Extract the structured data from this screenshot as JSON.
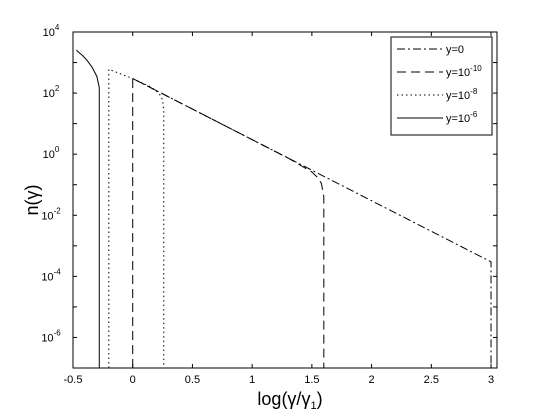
{
  "chart_data": {
    "type": "line",
    "xlabel": "log(γ/γ",
    "xlabel_sub": "1",
    "xlabel_tail": ")",
    "ylabel": "n(γ)",
    "xlim": [
      -0.5,
      3.05
    ],
    "ylim_exponent": [
      -7,
      4
    ],
    "y_scale": "log",
    "grid": false,
    "legend_position": "top-right",
    "x_ticks": [
      "-0.5",
      "0",
      "0.5",
      "1",
      "1.5",
      "2",
      "2.5",
      "3"
    ],
    "x_tick_values": [
      -0.5,
      0,
      0.5,
      1,
      1.5,
      2,
      2.5,
      3
    ],
    "y_ticks": [
      {
        "base": "10",
        "exp": "4",
        "value_exp": 4
      },
      {
        "base": "10",
        "exp": "2",
        "value_exp": 2
      },
      {
        "base": "10",
        "exp": "0",
        "value_exp": 0
      },
      {
        "base": "10",
        "exp": "-2",
        "value_exp": -2
      },
      {
        "base": "10",
        "exp": "-4",
        "value_exp": -4
      },
      {
        "base": "10",
        "exp": "-6",
        "value_exp": -6
      }
    ],
    "series": [
      {
        "name": "y=0",
        "name_base": "y=0",
        "name_exp": "",
        "dash": "8,3,2,3",
        "x": [
          0.0,
          0.5,
          1.0,
          1.5,
          2.0,
          2.5,
          3.0,
          3.0
        ],
        "y": [
          300,
          29.9,
          2.99,
          0.299,
          0.0299,
          0.00299,
          0.000299,
          1e-07
        ]
      },
      {
        "name": "y=10^-10",
        "name_base": "y=10",
        "name_exp": "-10",
        "dash": "9,5",
        "x": [
          0.0,
          0.0,
          0.5,
          1.0,
          1.3,
          1.5,
          1.55,
          1.58,
          1.6,
          1.6
        ],
        "y": [
          1e-07,
          300,
          29.9,
          2.99,
          0.75,
          0.26,
          0.17,
          0.11,
          0.04,
          1e-07
        ],
        "note": "vertical rise at x=0 then curve cutoff near x=1.6"
      },
      {
        "name": "y=10^-8",
        "name_base": "y=10",
        "name_exp": "-8",
        "dash": "1.5,3",
        "x": [
          -0.2,
          -0.2,
          0.0,
          0.15,
          0.22,
          0.25,
          0.26,
          0.26
        ],
        "y": [
          1e-07,
          600,
          300,
          160,
          100,
          60,
          25,
          1e-07
        ]
      },
      {
        "name": "y=10^-6",
        "name_base": "y=10",
        "name_exp": "-6",
        "dash": "",
        "x": [
          -0.28,
          -0.28,
          -0.3,
          -0.34,
          -0.38,
          -0.42,
          -0.46,
          -0.47
        ],
        "y": [
          1e-07,
          150,
          350,
          700,
          1150,
          1700,
          2300,
          2600
        ]
      }
    ]
  }
}
